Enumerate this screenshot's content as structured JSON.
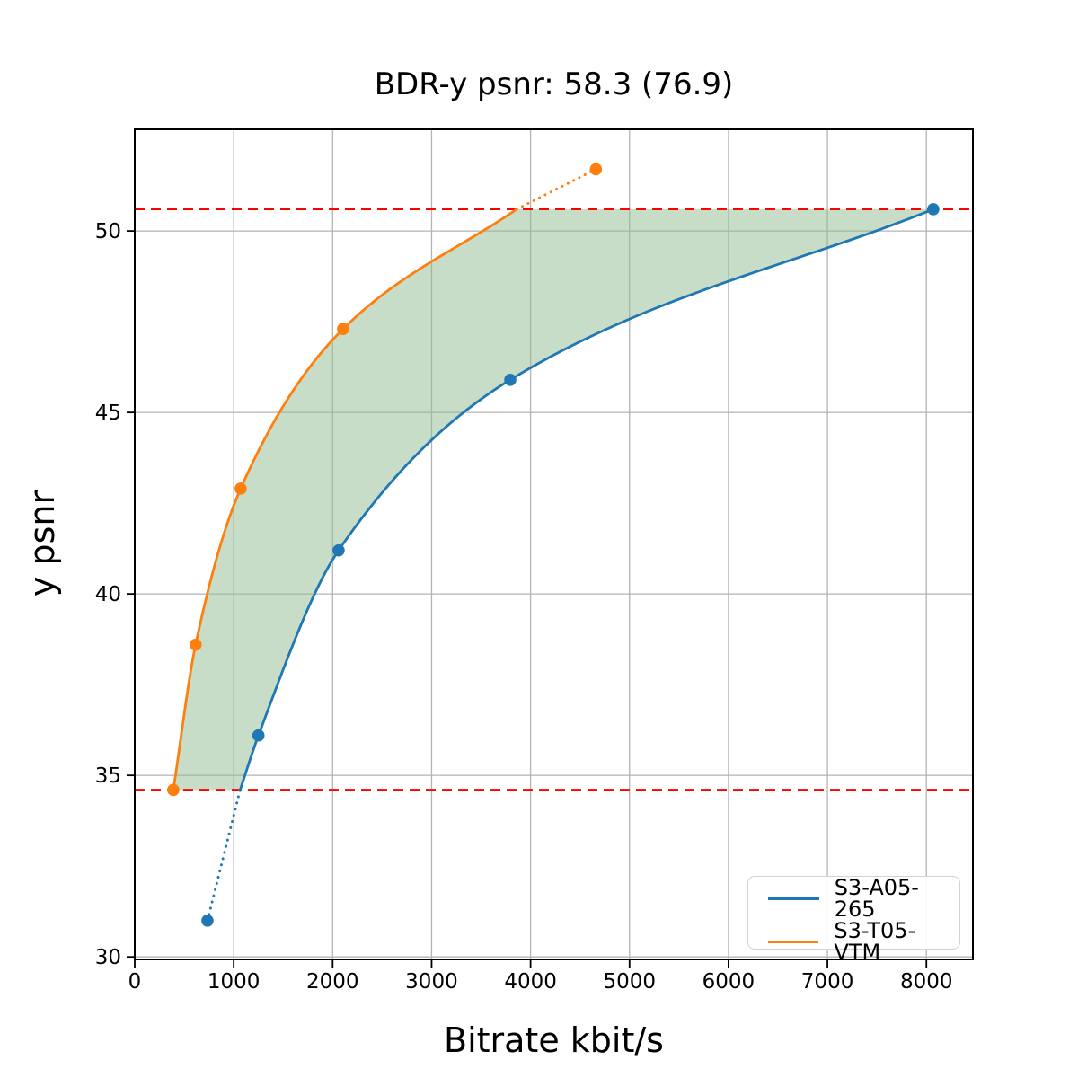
{
  "chart_data": {
    "type": "line",
    "title": "BDR-y psnr: 58.3 (76.9)",
    "xlabel": "Bitrate kbit/s",
    "ylabel": "y psnr",
    "xlim": [
      0,
      8470
    ],
    "ylim": [
      29.93,
      52.8
    ],
    "xticks": [
      0,
      1000,
      2000,
      3000,
      4000,
      5000,
      6000,
      7000,
      8000
    ],
    "yticks": [
      30,
      35,
      40,
      45,
      50
    ],
    "grid": true,
    "grid_color": "#b4b4b4",
    "background": "#ffffff",
    "ref_lines": [
      {
        "y": 34.6,
        "color": "#ff0000",
        "style": "dashed"
      },
      {
        "y": 50.6,
        "color": "#ff0000",
        "style": "dashed"
      }
    ],
    "fill_between": {
      "color": "#8fbc8f",
      "opacity": 0.5
    },
    "series": [
      {
        "name": "S3-A05-265",
        "color": "#1f77b4",
        "points": [
          [
            735,
            31.0
          ],
          [
            1250,
            36.1
          ],
          [
            2060,
            41.2
          ],
          [
            3795,
            45.9
          ],
          [
            8070,
            50.6
          ]
        ],
        "solid": [
          [
            1065,
            34.6
          ],
          [
            1250,
            36.1
          ],
          [
            2060,
            41.2
          ],
          [
            3795,
            45.9
          ],
          [
            8070,
            50.6
          ]
        ],
        "dotted": [
          [
            735,
            31.0
          ],
          [
            1065,
            34.6
          ]
        ]
      },
      {
        "name": "S3-T05-VTM",
        "color": "#ff7f0e",
        "points": [
          [
            390,
            34.6
          ],
          [
            615,
            38.6
          ],
          [
            1070,
            42.9
          ],
          [
            2105,
            47.3
          ],
          [
            4660,
            51.7
          ]
        ],
        "solid": [
          [
            390,
            34.6
          ],
          [
            615,
            38.6
          ],
          [
            1070,
            42.9
          ],
          [
            2105,
            47.3
          ],
          [
            3860,
            50.6
          ]
        ],
        "dotted": [
          [
            3860,
            50.6
          ],
          [
            4660,
            51.7
          ]
        ]
      }
    ],
    "legend": {
      "position": "lower right",
      "entries": [
        "S3-A05-265",
        "S3-T05-VTM"
      ]
    }
  }
}
